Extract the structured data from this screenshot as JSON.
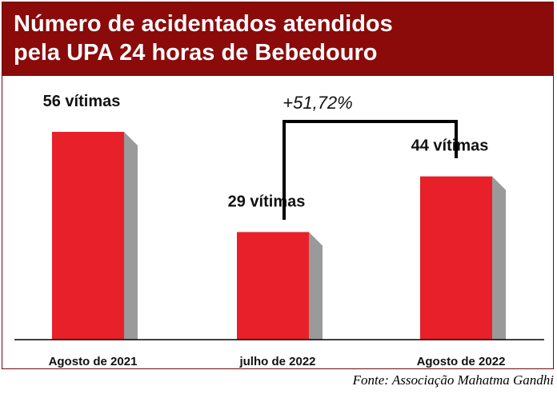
{
  "header": {
    "title_line1": "Número de acidentados atendidos",
    "title_line2": "pela UPA 24 horas de Bebedouro"
  },
  "source": "Fonte: Associação Mahatma Gandhi",
  "colors": {
    "header_bg": "#8b0a0a",
    "bar": "#e8202a",
    "bar_side": "#9a9a9a"
  },
  "chart_data": {
    "type": "bar",
    "title": "Número de acidentados atendidos pela UPA 24 horas de Bebedouro",
    "categories": [
      "Agosto de 2021",
      "julho de 2022",
      "Agosto de 2022"
    ],
    "values": [
      56,
      29,
      44
    ],
    "data_labels": [
      "56 vítimas",
      "29 vítimas",
      "44 vítimas"
    ],
    "annotation": {
      "text": "+51,72%",
      "from_category": "julho de 2022",
      "to_category": "Agosto de 2022"
    },
    "ylim": [
      0,
      56
    ],
    "grid": false,
    "legend": "none"
  }
}
